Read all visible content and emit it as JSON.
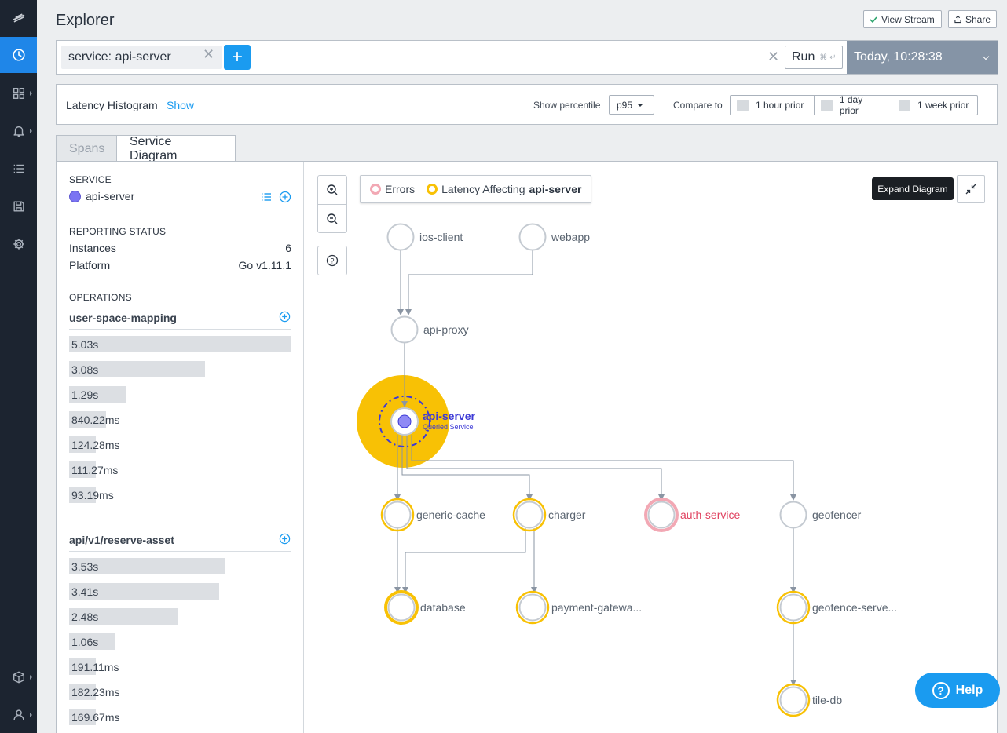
{
  "header": {
    "title": "Explorer",
    "view_stream_label": "View Stream",
    "share_label": "Share"
  },
  "query": {
    "chip_text": "service:  api-server",
    "add_label": "+",
    "run_label": "Run",
    "run_hint": "⌘ ↵",
    "time_label": "Today, 10:28:38"
  },
  "histogram": {
    "title": "Latency Histogram",
    "show_label": "Show",
    "percentile_label": "Show percentile",
    "percentile_value": "p95",
    "compare_label": "Compare to",
    "compare_options": [
      "1 hour prior",
      "1 day prior",
      "1 week prior"
    ]
  },
  "tabs": [
    "Spans",
    "Service Diagram"
  ],
  "sidebar": {
    "service_heading": "SERVICE",
    "service_name": "api-server",
    "service_color": "#7b74f2",
    "reporting_heading": "REPORTING STATUS",
    "instances_label": "Instances",
    "instances_value": "6",
    "platform_label": "Platform",
    "platform_value": "Go v1.11.1",
    "operations_heading": "OPERATIONS",
    "operations": [
      {
        "name": "user-space-mapping",
        "latencies": [
          {
            "label": "5.03s",
            "ms": 5030
          },
          {
            "label": "3.08s",
            "ms": 3080
          },
          {
            "label": "1.29s",
            "ms": 1290
          },
          {
            "label": "840.22ms",
            "ms": 840.22
          },
          {
            "label": "124.28ms",
            "ms": 124.28
          },
          {
            "label": "111.27ms",
            "ms": 111.27
          },
          {
            "label": "93.19ms",
            "ms": 93.19
          }
        ]
      },
      {
        "name": "api/v1/reserve-asset",
        "latencies": [
          {
            "label": "3.53s",
            "ms": 3530
          },
          {
            "label": "3.41s",
            "ms": 3410
          },
          {
            "label": "2.48s",
            "ms": 2480
          },
          {
            "label": "1.06s",
            "ms": 1060
          },
          {
            "label": "191.11ms",
            "ms": 191.11
          },
          {
            "label": "182.23ms",
            "ms": 182.23
          },
          {
            "label": "169.67ms",
            "ms": 169.67
          }
        ]
      }
    ]
  },
  "diagram": {
    "legend_errors": "Errors",
    "legend_latency_prefix": "Latency Affecting",
    "legend_latency_service": "api-server",
    "expand_tooltip": "Expand Diagram",
    "queried_caption": "Queried Service",
    "colors": {
      "latency": "#f8c105",
      "error": "#f2a8b4",
      "error_text": "#e0415f",
      "queried": "#3d3ad6",
      "edge": "#8a95a3"
    },
    "nodes": [
      {
        "id": "ios-client",
        "label": "ios-client",
        "status": "normal"
      },
      {
        "id": "webapp",
        "label": "webapp",
        "status": "normal"
      },
      {
        "id": "api-proxy",
        "label": "api-proxy",
        "status": "normal"
      },
      {
        "id": "api-server",
        "label": "api-server",
        "status": "queried"
      },
      {
        "id": "generic-cache",
        "label": "generic-cache",
        "status": "latency"
      },
      {
        "id": "charger",
        "label": "charger",
        "status": "latency"
      },
      {
        "id": "auth-service",
        "label": "auth-service",
        "status": "error"
      },
      {
        "id": "geofencer",
        "label": "geofencer",
        "status": "normal"
      },
      {
        "id": "database",
        "label": "database",
        "status": "latency-strong"
      },
      {
        "id": "payment-gateway",
        "label": "payment-gatewa...",
        "status": "latency"
      },
      {
        "id": "geofence-server",
        "label": "geofence-serve...",
        "status": "latency"
      },
      {
        "id": "tile-db",
        "label": "tile-db",
        "status": "latency"
      }
    ],
    "edges": [
      [
        "ios-client",
        "api-proxy"
      ],
      [
        "webapp",
        "api-proxy"
      ],
      [
        "api-proxy",
        "api-server"
      ],
      [
        "api-server",
        "generic-cache"
      ],
      [
        "api-server",
        "charger"
      ],
      [
        "api-server",
        "auth-service"
      ],
      [
        "api-server",
        "geofencer"
      ],
      [
        "generic-cache",
        "database"
      ],
      [
        "charger",
        "database"
      ],
      [
        "charger",
        "payment-gateway"
      ],
      [
        "geofencer",
        "geofence-server"
      ],
      [
        "geofence-server",
        "tile-db"
      ]
    ]
  },
  "help": {
    "label": "Help"
  }
}
